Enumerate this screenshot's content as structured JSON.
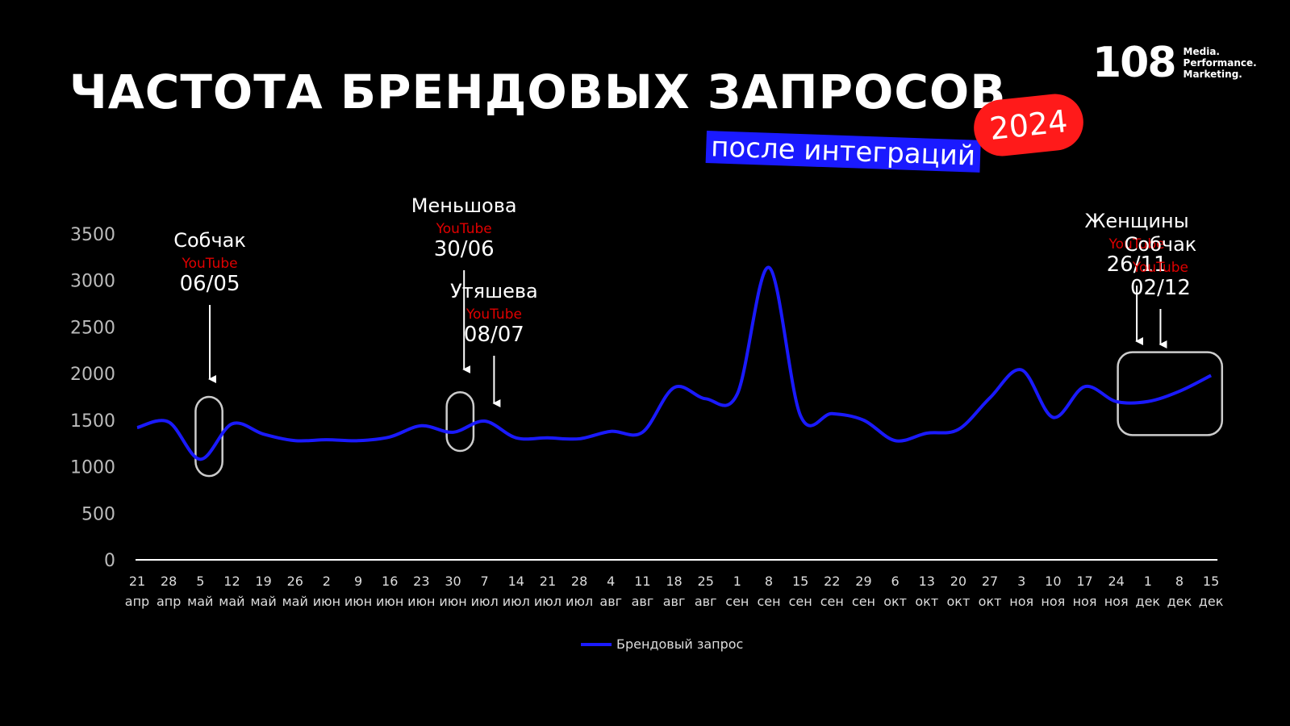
{
  "header": {
    "title": "ЧАСТОТА БРЕНДОВЫХ ЗАПРОСОВ",
    "subtitle": "после интеграций",
    "year": "2024"
  },
  "logo": {
    "number": "108",
    "lines": [
      "Media.",
      "Performance.",
      "Marketing."
    ]
  },
  "colors": {
    "background": "#000000",
    "series": "#1a1aff",
    "badge": "#ff1a1a",
    "youtube": "#e00000"
  },
  "chart_data": {
    "type": "line",
    "ylim": [
      0,
      3500
    ],
    "yticks": [
      "0",
      "500",
      "1000",
      "1500",
      "2000",
      "2500",
      "3000",
      "3500"
    ],
    "grid": false,
    "legend_position": "bottom-center",
    "categories": [
      [
        "21",
        "апр"
      ],
      [
        "28",
        "апр"
      ],
      [
        "5",
        "май"
      ],
      [
        "12",
        "май"
      ],
      [
        "19",
        "май"
      ],
      [
        "26",
        "май"
      ],
      [
        "2",
        "июн"
      ],
      [
        "9",
        "июн"
      ],
      [
        "16",
        "июн"
      ],
      [
        "23",
        "июн"
      ],
      [
        "30",
        "июн"
      ],
      [
        "7",
        "июл"
      ],
      [
        "14",
        "июл"
      ],
      [
        "21",
        "июл"
      ],
      [
        "28",
        "июл"
      ],
      [
        "4",
        "авг"
      ],
      [
        "11",
        "авг"
      ],
      [
        "18",
        "авг"
      ],
      [
        "25",
        "авг"
      ],
      [
        "1",
        "сен"
      ],
      [
        "8",
        "сен"
      ],
      [
        "15",
        "сен"
      ],
      [
        "22",
        "сен"
      ],
      [
        "29",
        "сен"
      ],
      [
        "6",
        "окт"
      ],
      [
        "13",
        "окт"
      ],
      [
        "20",
        "окт"
      ],
      [
        "27",
        "окт"
      ],
      [
        "3",
        "ноя"
      ],
      [
        "10",
        "ноя"
      ],
      [
        "17",
        "ноя"
      ],
      [
        "24",
        "ноя"
      ],
      [
        "1",
        "дек"
      ],
      [
        "8",
        "дек"
      ],
      [
        "15",
        "дек"
      ]
    ],
    "series": [
      {
        "name": "Брендовый запрос",
        "values": [
          1420,
          1480,
          1080,
          1460,
          1350,
          1280,
          1290,
          1280,
          1320,
          1440,
          1370,
          1490,
          1310,
          1310,
          1300,
          1380,
          1370,
          1850,
          1730,
          1780,
          3140,
          1550,
          1570,
          1500,
          1280,
          1360,
          1400,
          1740,
          2040,
          1530,
          1860,
          1700,
          1700,
          1810,
          1980
        ]
      }
    ],
    "annotations": [
      {
        "name": "Собчак",
        "platform": "YouTube",
        "date": "06/05",
        "x_index": 2.3,
        "boxed": [
          1.85,
          2.7,
          900,
          1750
        ]
      },
      {
        "name": "Меньшова",
        "platform": "YouTube",
        "date": "30/06",
        "x_index": 10.35,
        "boxed": [
          9.8,
          10.65,
          1170,
          1800
        ]
      },
      {
        "name": "Утяшева",
        "platform": "YouTube",
        "date": "08/07",
        "x_index": 11.3
      },
      {
        "name": "Женщины",
        "platform": "YouTube",
        "date": "26/11",
        "x_index": 31.65,
        "boxed": [
          31.05,
          34.35,
          1340,
          2230
        ]
      },
      {
        "name": "Собчак",
        "platform": "YouTube",
        "date": "02/12",
        "x_index": 32.4
      }
    ]
  }
}
